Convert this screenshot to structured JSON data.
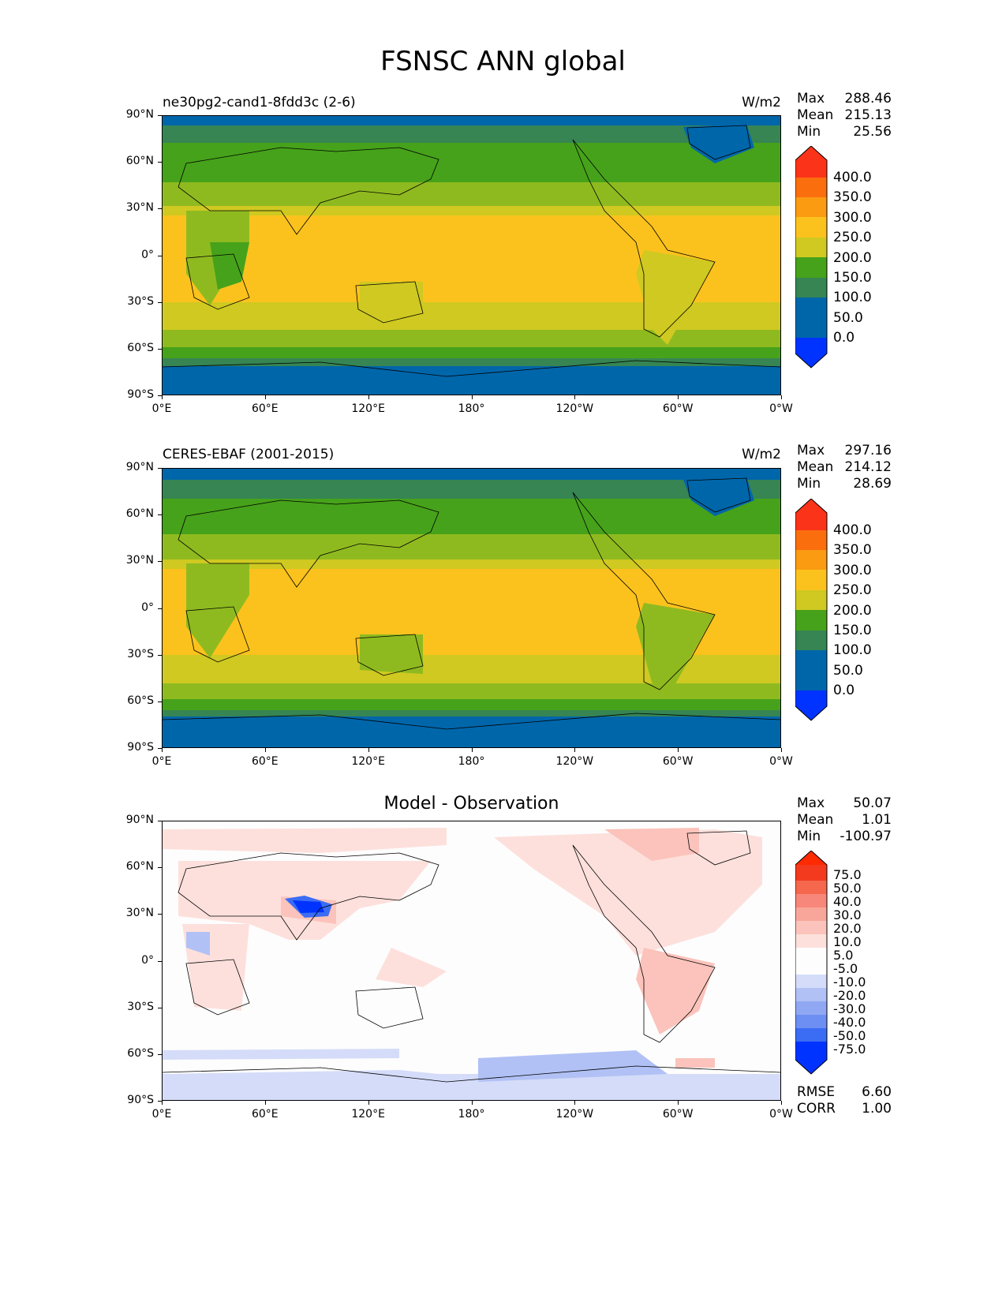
{
  "figure_title": "FSNSC ANN global",
  "lat_ticks": [
    "90°N",
    "60°N",
    "30°N",
    "0°",
    "30°S",
    "60°S",
    "90°S"
  ],
  "lon_ticks": [
    "0°E",
    "60°E",
    "120°E",
    "180°",
    "120°W",
    "60°W",
    "0°W"
  ],
  "panels": [
    {
      "title": "ne30pg2-cand1-8fdd3c (2-6)",
      "units": "W/m2",
      "stats": {
        "max_label": "Max",
        "max": "288.46",
        "mean_label": "Mean",
        "mean": "215.13",
        "min_label": "Min",
        "min": "25.56"
      },
      "colorbar_levels": [
        "400.0",
        "350.0",
        "300.0",
        "250.0",
        "200.0",
        "150.0",
        "100.0",
        "50.0",
        "0.0"
      ]
    },
    {
      "title": "CERES-EBAF (2001-2015)",
      "units": "W/m2",
      "stats": {
        "max_label": "Max",
        "max": "297.16",
        "mean_label": "Mean",
        "mean": "214.12",
        "min_label": "Min",
        "min": "28.69"
      },
      "colorbar_levels": [
        "400.0",
        "350.0",
        "300.0",
        "250.0",
        "200.0",
        "150.0",
        "100.0",
        "50.0",
        "0.0"
      ]
    },
    {
      "title": "Model - Observation",
      "units": "",
      "stats": {
        "max_label": "Max",
        "max": "50.07",
        "mean_label": "Mean",
        "mean": "1.01",
        "min_label": "Min",
        "min": "-100.97"
      },
      "colorbar_levels": [
        "75.0",
        "50.0",
        "40.0",
        "30.0",
        "20.0",
        "10.0",
        "5.0",
        "-5.0",
        "-10.0",
        "-20.0",
        "-30.0",
        "-40.0",
        "-50.0",
        "-75.0"
      ],
      "rmse_label": "RMSE",
      "rmse": "6.60",
      "corr_label": "CORR",
      "corr": "1.00"
    }
  ],
  "colors": {
    "seq": [
      "#0033ff",
      "#0066aa",
      "#368553",
      "#46a21a",
      "#8fba1f",
      "#cfc921",
      "#fbc21d",
      "#fb9b12",
      "#fb6e0e",
      "#fb3318"
    ],
    "div": [
      "#0033ff",
      "#3b6cf4",
      "#6d8ff3",
      "#90a8f3",
      "#b1c1f5",
      "#d4dcf9",
      "#fdfdfd",
      "#fde0dc",
      "#fbc3bb",
      "#f9a69a",
      "#f7877a",
      "#f5684e",
      "#f33a1f",
      "#ff2a00"
    ]
  }
}
